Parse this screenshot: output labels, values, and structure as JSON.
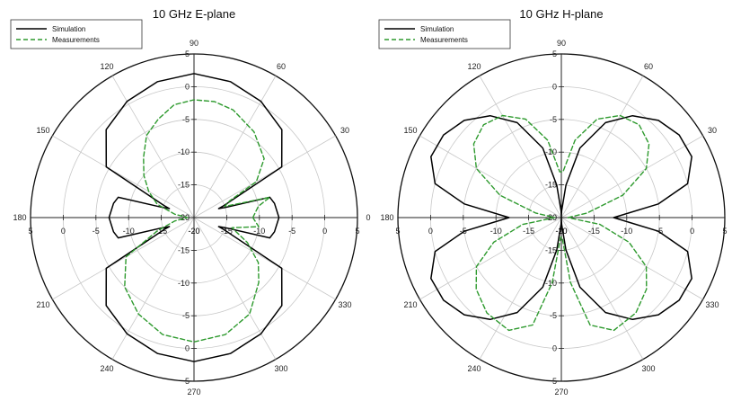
{
  "chart_data": [
    {
      "type": "polar-line",
      "title": "10 GHz E-plane",
      "unit": "dB",
      "radial_range": [
        -20,
        5
      ],
      "radial_ticks": [
        5,
        0,
        -5,
        -10,
        -15,
        -20
      ],
      "angle_labels": [
        "0",
        "30",
        "60",
        "90",
        "120",
        "150",
        "180",
        "210",
        "240",
        "270",
        "300",
        "330"
      ],
      "grid": true,
      "legend": "top-left",
      "series": [
        {
          "name": "Simulation",
          "color": "#000000",
          "style": "solid",
          "points": [
            [
              0,
              -7
            ],
            [
              10,
              -7.5
            ],
            [
              15,
              -8
            ],
            [
              18,
              -15
            ],
            [
              20,
              -16
            ],
            [
              22,
              -15
            ],
            [
              30,
              -4.5
            ],
            [
              45,
              -1
            ],
            [
              60,
              0.5
            ],
            [
              75,
              1.5
            ],
            [
              90,
              2
            ],
            [
              105,
              1.5
            ],
            [
              120,
              0.5
            ],
            [
              135,
              -1
            ],
            [
              150,
              -4.5
            ],
            [
              158,
              -15
            ],
            [
              160,
              -16
            ],
            [
              162,
              -15
            ],
            [
              165,
              -8
            ],
            [
              170,
              -7.5
            ],
            [
              180,
              -7
            ],
            [
              190,
              -7.5
            ],
            [
              195,
              -8
            ],
            [
              198,
              -15
            ],
            [
              200,
              -16
            ],
            [
              202,
              -15
            ],
            [
              210,
              -4.5
            ],
            [
              225,
              -1
            ],
            [
              240,
              0.5
            ],
            [
              255,
              1.5
            ],
            [
              270,
              2
            ],
            [
              285,
              1.5
            ],
            [
              300,
              0.5
            ],
            [
              315,
              -1
            ],
            [
              330,
              -4.5
            ],
            [
              338,
              -15
            ],
            [
              340,
              -16
            ],
            [
              342,
              -15
            ],
            [
              345,
              -8
            ],
            [
              350,
              -7.5
            ],
            [
              360,
              -7
            ]
          ]
        },
        {
          "name": "Measurements",
          "color": "#2e9a2e",
          "style": "dashed",
          "points": [
            [
              0,
              -11
            ],
            [
              10,
              -10
            ],
            [
              15,
              -8
            ],
            [
              20,
              -15
            ],
            [
              25,
              -14
            ],
            [
              30,
              -9
            ],
            [
              40,
              -6
            ],
            [
              55,
              -4
            ],
            [
              70,
              -2.5
            ],
            [
              80,
              -2
            ],
            [
              90,
              -2
            ],
            [
              100,
              -2.5
            ],
            [
              110,
              -4
            ],
            [
              120,
              -5.5
            ],
            [
              130,
              -8
            ],
            [
              140,
              -10
            ],
            [
              150,
              -12
            ],
            [
              160,
              -14
            ],
            [
              170,
              -17
            ],
            [
              180,
              -19
            ],
            [
              190,
              -17
            ],
            [
              200,
              -14
            ],
            [
              210,
              -8
            ],
            [
              225,
              -5
            ],
            [
              240,
              -3
            ],
            [
              255,
              -1.5
            ],
            [
              270,
              -1
            ],
            [
              285,
              -1.5
            ],
            [
              300,
              -3
            ],
            [
              315,
              -6
            ],
            [
              325,
              -8
            ],
            [
              335,
              -11
            ],
            [
              345,
              -14
            ],
            [
              352,
              -10
            ],
            [
              360,
              -11
            ]
          ]
        }
      ]
    },
    {
      "type": "polar-line",
      "title": "10 GHz H-plane",
      "unit": "dB",
      "radial_range": [
        -20,
        5
      ],
      "radial_ticks": [
        5,
        0,
        -5,
        -10,
        -15,
        -20
      ],
      "angle_labels": [
        "0",
        "30",
        "60",
        "90",
        "120",
        "150",
        "180",
        "210",
        "240",
        "270",
        "300",
        "330"
      ],
      "grid": true,
      "legend": "top-left",
      "series": [
        {
          "name": "Simulation",
          "color": "#000000",
          "style": "solid",
          "points": [
            [
              0,
              -12
            ],
            [
              8,
              -5
            ],
            [
              15,
              0
            ],
            [
              25,
              2
            ],
            [
              35,
              2
            ],
            [
              45,
              1
            ],
            [
              55,
              -1
            ],
            [
              65,
              -4
            ],
            [
              75,
              -9
            ],
            [
              82,
              -15
            ],
            [
              88,
              -19
            ],
            [
              90,
              -20
            ],
            [
              92,
              -19
            ],
            [
              98,
              -15
            ],
            [
              105,
              -9
            ],
            [
              115,
              -4
            ],
            [
              125,
              -1
            ],
            [
              135,
              1
            ],
            [
              145,
              2
            ],
            [
              155,
              2
            ],
            [
              165,
              0
            ],
            [
              172,
              -5
            ],
            [
              180,
              -12
            ],
            [
              188,
              -5
            ],
            [
              195,
              0
            ],
            [
              205,
              2
            ],
            [
              215,
              2
            ],
            [
              225,
              1
            ],
            [
              235,
              -1
            ],
            [
              245,
              -4
            ],
            [
              255,
              -9
            ],
            [
              262,
              -15
            ],
            [
              268,
              -19
            ],
            [
              270,
              -20
            ],
            [
              272,
              -19
            ],
            [
              278,
              -15
            ],
            [
              285,
              -9
            ],
            [
              295,
              -4
            ],
            [
              305,
              -1
            ],
            [
              315,
              1
            ],
            [
              325,
              2
            ],
            [
              335,
              2
            ],
            [
              345,
              0
            ],
            [
              352,
              -5
            ],
            [
              360,
              -12
            ]
          ]
        },
        {
          "name": "Measurements",
          "color": "#2e9a2e",
          "style": "dashed",
          "points": [
            [
              0,
              -19
            ],
            [
              10,
              -16
            ],
            [
              20,
              -10
            ],
            [
              30,
              -5
            ],
            [
              40,
              -2.5
            ],
            [
              50,
              -1.5
            ],
            [
              60,
              -2
            ],
            [
              70,
              -4
            ],
            [
              80,
              -8
            ],
            [
              88,
              -13
            ],
            [
              92,
              -13
            ],
            [
              100,
              -8
            ],
            [
              110,
              -4
            ],
            [
              120,
              -2
            ],
            [
              130,
              -1.5
            ],
            [
              140,
              -2.5
            ],
            [
              150,
              -5
            ],
            [
              160,
              -10
            ],
            [
              170,
              -16
            ],
            [
              180,
              -19
            ],
            [
              190,
              -14
            ],
            [
              200,
              -9
            ],
            [
              210,
              -5
            ],
            [
              220,
              -3
            ],
            [
              232,
              -1.5
            ],
            [
              245,
              -1
            ],
            [
              255,
              -3
            ],
            [
              262,
              -10
            ],
            [
              268,
              -17
            ],
            [
              272,
              -17
            ],
            [
              278,
              -10
            ],
            [
              285,
              -3
            ],
            [
              295,
              -1
            ],
            [
              308,
              -1.5
            ],
            [
              320,
              -3
            ],
            [
              330,
              -5
            ],
            [
              340,
              -9
            ],
            [
              350,
              -14
            ],
            [
              360,
              -19
            ]
          ]
        }
      ]
    }
  ]
}
